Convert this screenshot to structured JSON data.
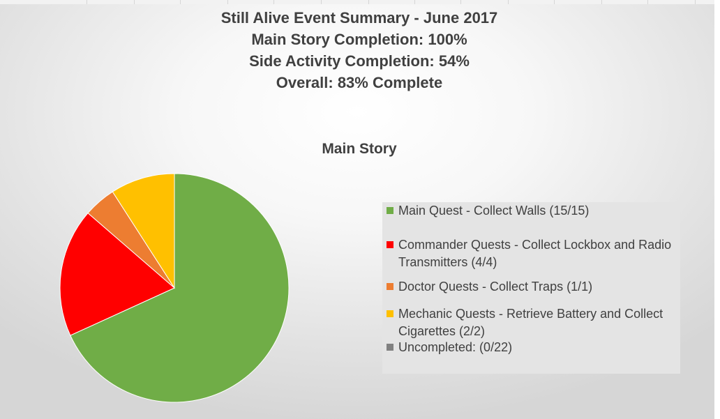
{
  "header": {
    "line1": "Still Alive Event Summary - June 2017",
    "line2": "Main Story Completion: 100%",
    "line3": "Side Activity Completion: 54%",
    "line4": "Overall: 83% Complete"
  },
  "chart_data": {
    "type": "pie",
    "title": "Main Story",
    "legend_position": "right",
    "slices": [
      {
        "label": "Main Quest - Collect Walls (15/15)",
        "value": 15,
        "color": "#70ad47"
      },
      {
        "label": "Commander Quests - Collect Lockbox and Radio Transmitters (4/4)",
        "value": 4,
        "color": "#ff0000"
      },
      {
        "label": "Doctor Quests - Collect Traps (1/1)",
        "value": 1,
        "color": "#ed7d31"
      },
      {
        "label": "Mechanic Quests - Retrieve Battery and Collect Cigarettes (2/2)",
        "value": 2,
        "color": "#ffc000"
      },
      {
        "label": "Uncompleted: (0/22)",
        "value": 0,
        "color": "#808080"
      }
    ]
  }
}
